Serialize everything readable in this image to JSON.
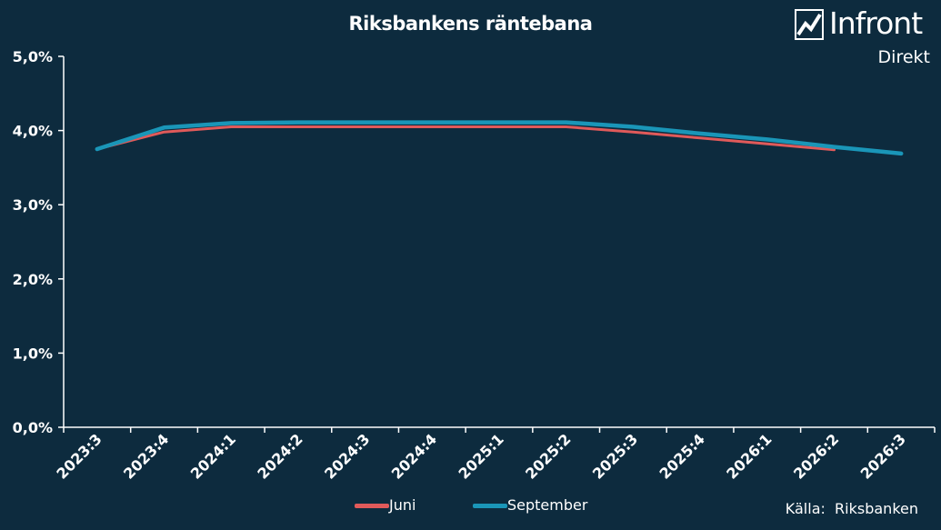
{
  "chart_data": {
    "type": "line",
    "title": "Riksbankens räntebana",
    "xlabel": "",
    "ylabel": "",
    "categories": [
      "2023:3",
      "2023:4",
      "2024:1",
      "2024:2",
      "2024:3",
      "2024:4",
      "2025:1",
      "2025:2",
      "2025:3",
      "2025:4",
      "2026:1",
      "2026:2",
      "2026:3"
    ],
    "ylim": [
      0,
      5
    ],
    "yticks": [
      "0,0%",
      "1,0%",
      "2,0%",
      "3,0%",
      "4,0%",
      "5,0%"
    ],
    "grid": false,
    "legend_position": "bottom",
    "series": [
      {
        "name": "Juni",
        "color": "#e05a5a",
        "values": [
          3.75,
          3.98,
          4.05,
          4.05,
          4.05,
          4.05,
          4.05,
          4.05,
          3.98,
          3.9,
          3.82,
          3.74,
          null
        ]
      },
      {
        "name": "September",
        "color": "#1a96b8",
        "values": [
          3.75,
          4.04,
          4.1,
          4.11,
          4.11,
          4.11,
          4.11,
          4.11,
          4.05,
          3.96,
          3.88,
          3.78,
          3.69
        ]
      }
    ]
  },
  "logo": {
    "name": "Infront",
    "sub": "Direkt"
  },
  "source": "Källa:  Riksbanken",
  "colors": {
    "background": "#0d2b3e",
    "axis": "#ffffff",
    "text": "#ffffff"
  }
}
